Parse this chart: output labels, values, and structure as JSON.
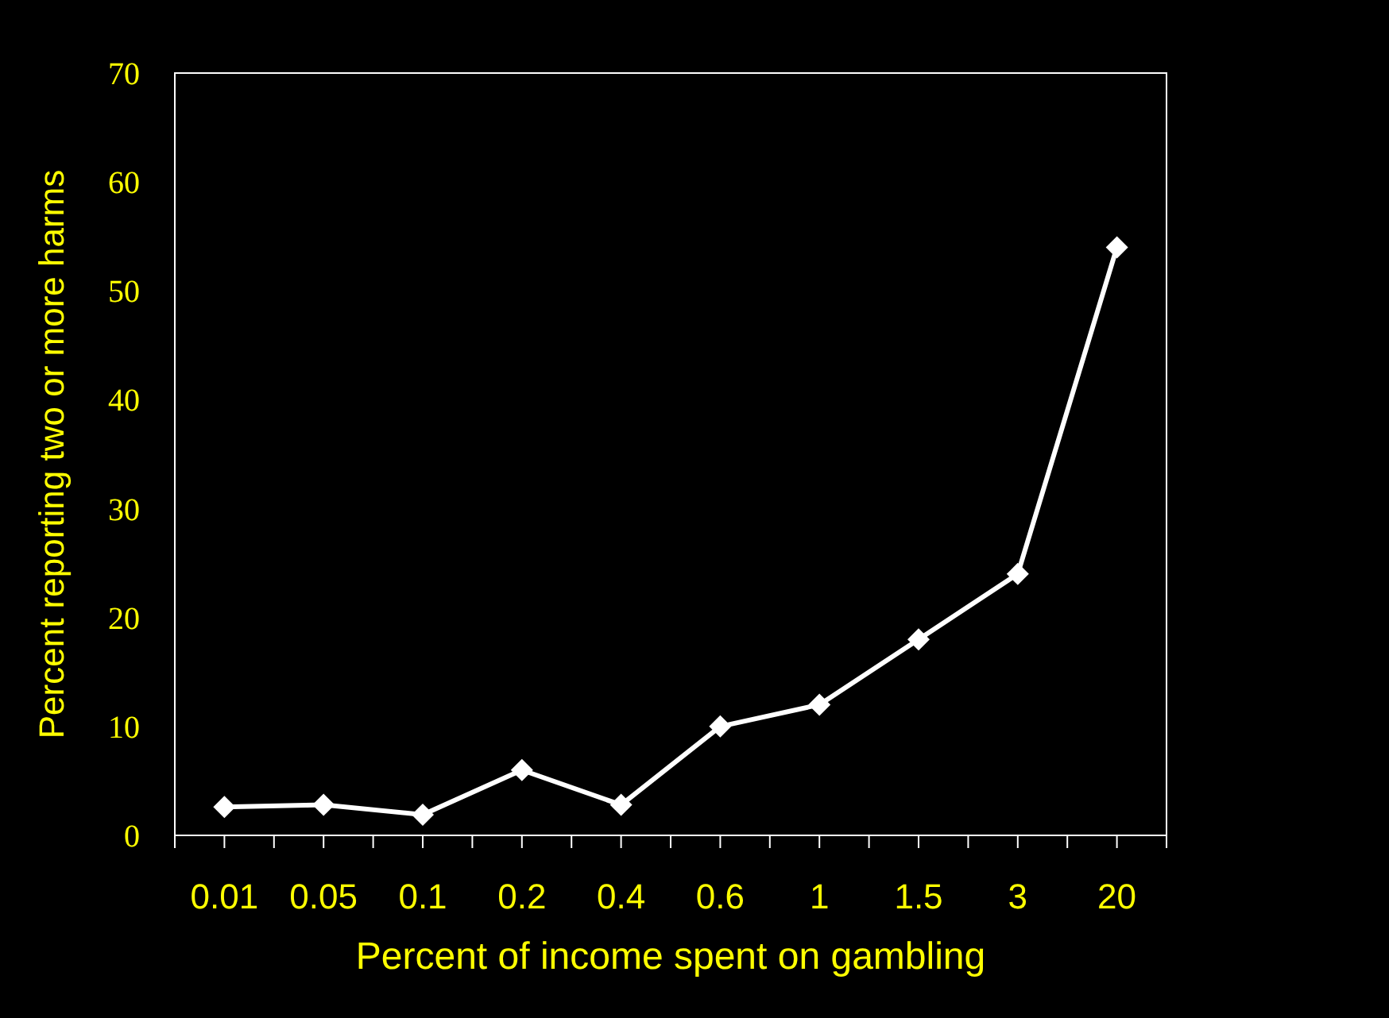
{
  "chart_data": {
    "type": "line",
    "xlabel": "Percent of income spent on gambling",
    "ylabel": "Percent reporting two or more harms",
    "categories": [
      "0.01",
      "0.05",
      "0.1",
      "0.2",
      "0.4",
      "0.6",
      "1",
      "1.5",
      "3",
      "20"
    ],
    "series": [
      {
        "color": "#ffffff",
        "values": [
          2.6,
          2.8,
          1.9,
          6,
          2.8,
          10,
          12,
          18,
          24,
          54
        ]
      }
    ],
    "ylim": [
      0,
      70
    ],
    "yticks": [
      0,
      10,
      20,
      30,
      40,
      50,
      60,
      70
    ],
    "marker": "diamond",
    "line_style": "solid"
  }
}
